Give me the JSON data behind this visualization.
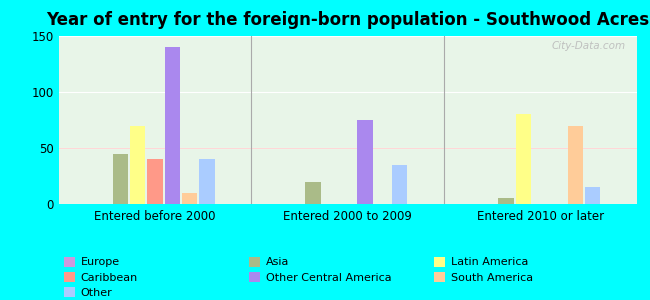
{
  "title": "Year of entry for the foreign-born population - Southwood Acres",
  "groups": [
    "Entered before 2000",
    "Entered 2000 to 2009",
    "Entered 2010 or later"
  ],
  "categories": [
    "Europe",
    "Asia",
    "Latin America",
    "Caribbean",
    "Other Central America",
    "South America",
    "Other"
  ],
  "colors": [
    "#cc99dd",
    "#aabb88",
    "#ffff88",
    "#ff9988",
    "#aa88ee",
    "#ffcc99",
    "#aaccff"
  ],
  "values": [
    [
      0,
      45,
      70,
      40,
      140,
      10,
      40
    ],
    [
      0,
      20,
      0,
      0,
      75,
      0,
      35
    ],
    [
      0,
      5,
      80,
      0,
      0,
      70,
      15
    ]
  ],
  "ylim": [
    0,
    150
  ],
  "yticks": [
    0,
    50,
    100,
    150
  ],
  "background_color": "#00ffff",
  "plot_bg": "#e8f5e8",
  "watermark": "City-Data.com",
  "title_fontsize": 12,
  "tick_fontsize": 8.5,
  "legend_fontsize": 8
}
